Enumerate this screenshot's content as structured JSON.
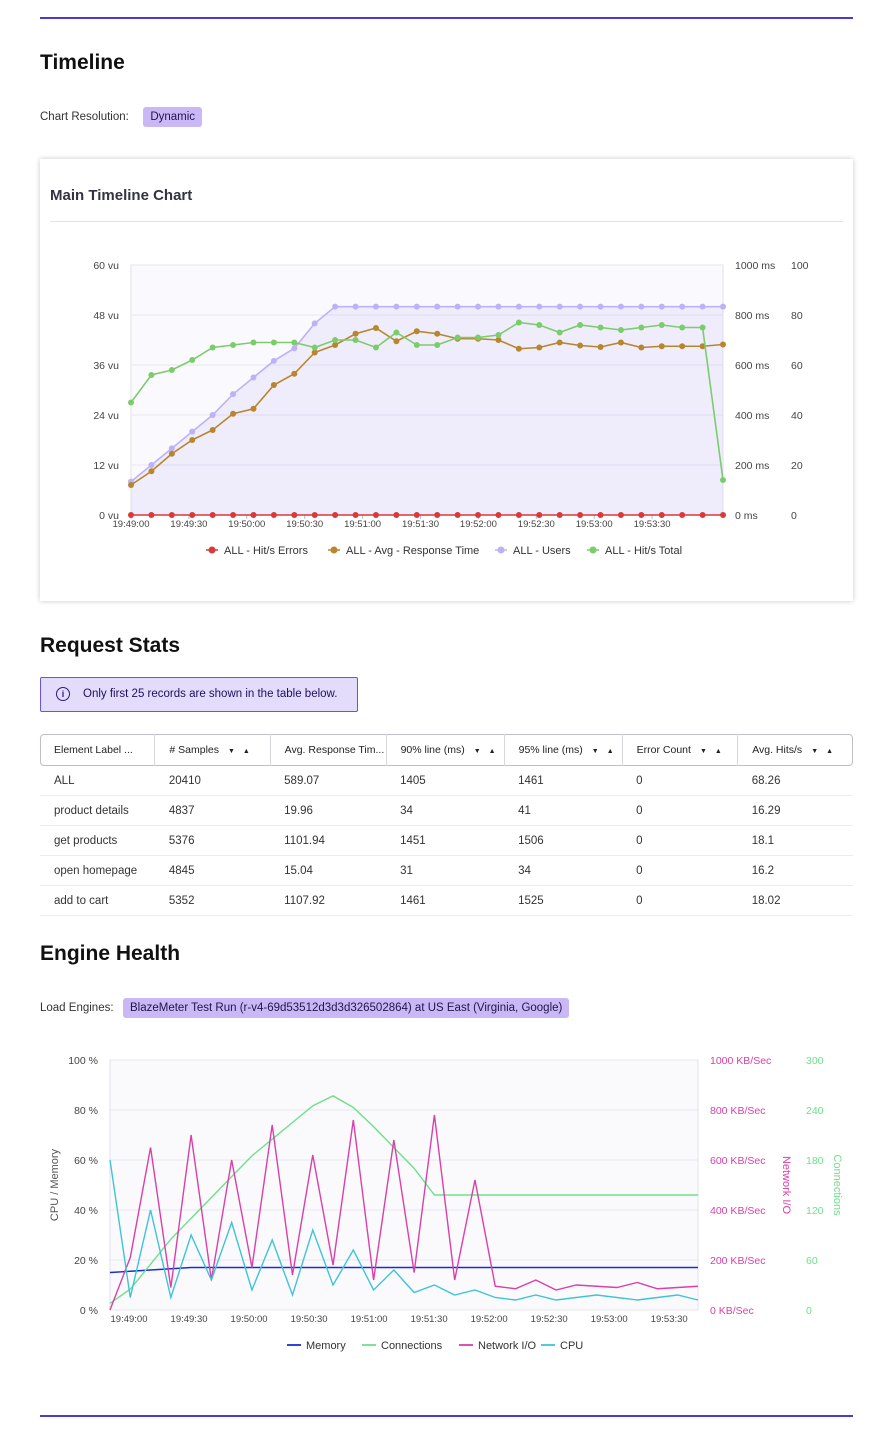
{
  "timeline": {
    "heading": "Timeline",
    "resolution_label": "Chart Resolution:",
    "resolution_value": "Dynamic",
    "card_title": "Main Timeline Chart"
  },
  "request_stats": {
    "heading": "Request Stats",
    "info": "Only first 25 records are shown in the table below.",
    "columns": [
      "Element Label ...",
      "# Samples",
      "Avg. Response Tim...",
      "90% line (ms)",
      "95% line (ms)",
      "Error Count",
      "Avg. Hits/s"
    ],
    "rows": [
      [
        "ALL",
        "20410",
        "589.07",
        "1405",
        "1461",
        "0",
        "68.26"
      ],
      [
        "product details",
        "4837",
        "19.96",
        "34",
        "41",
        "0",
        "16.29"
      ],
      [
        "get products",
        "5376",
        "1101.94",
        "1451",
        "1506",
        "0",
        "18.1"
      ],
      [
        "open homepage",
        "4845",
        "15.04",
        "31",
        "34",
        "0",
        "16.2"
      ],
      [
        "add to cart",
        "5352",
        "1107.92",
        "1461",
        "1525",
        "0",
        "18.02"
      ]
    ]
  },
  "engine_health": {
    "heading": "Engine Health",
    "engines_label": "Load Engines:",
    "engine_value": "BlazeMeter Test Run (r-v4-69d53512d3d3d326502864) at US East (Virginia, Google)"
  },
  "colors": {
    "accent": "#4b3bd6",
    "errors": "#d83a3a",
    "response_time": "#b8862c",
    "users": "#bfb1f5",
    "hits_total": "#7ccc6c",
    "memory": "#1c2ad6",
    "connections": "#6fe08a",
    "network_io": "#d940a8",
    "cpu": "#3fc4d6"
  },
  "chart_data": [
    {
      "type": "line",
      "title": "Main Timeline Chart",
      "x_ticks": [
        "19:49:00",
        "19:49:30",
        "19:50:00",
        "19:50:30",
        "19:51:00",
        "19:51:30",
        "19:52:00",
        "19:52:30",
        "19:53:00",
        "19:53:30"
      ],
      "y_left": {
        "ticks": [
          "0 vu",
          "12 vu",
          "24 vu",
          "36 vu",
          "48 vu",
          "60 vu"
        ],
        "range": [
          0,
          60
        ]
      },
      "y_right_ms": {
        "ticks": [
          "0 ms",
          "200 ms",
          "400 ms",
          "600 ms",
          "800 ms",
          "1000 ms"
        ],
        "range": [
          0,
          1000
        ]
      },
      "y_right_hits": {
        "ticks": [
          "0",
          "20",
          "40",
          "60",
          "80",
          "100"
        ],
        "range": [
          0,
          100
        ]
      },
      "legend": "bottom",
      "grid": true,
      "series": [
        {
          "name": "ALL - Hit/s Errors",
          "axis": "hits",
          "values": [
            0,
            0,
            0,
            0,
            0,
            0,
            0,
            0,
            0,
            0,
            0,
            0,
            0,
            0,
            0,
            0,
            0,
            0,
            0,
            0,
            0,
            0,
            0,
            0,
            0,
            0,
            0,
            0,
            0,
            0
          ]
        },
        {
          "name": "ALL - Avg - Response Time",
          "axis": "ms",
          "values": [
            120,
            175,
            245,
            300,
            340,
            405,
            425,
            520,
            565,
            650,
            680,
            725,
            748,
            695,
            735,
            725,
            705,
            705,
            700,
            665,
            670,
            690,
            678,
            672,
            690,
            670,
            675,
            675,
            675,
            682
          ]
        },
        {
          "name": "ALL - Users",
          "axis": "vu",
          "values": [
            8,
            12,
            16,
            20,
            24,
            29,
            33,
            37,
            40,
            46,
            50,
            50,
            50,
            50,
            50,
            50,
            50,
            50,
            50,
            50,
            50,
            50,
            50,
            50,
            50,
            50,
            50,
            50,
            50,
            50
          ]
        },
        {
          "name": "ALL - Hit/s Total",
          "axis": "hits",
          "values": [
            45,
            56,
            58,
            62,
            67,
            68,
            69,
            69,
            69,
            67,
            70,
            70,
            67,
            73,
            68,
            68,
            71,
            71,
            72,
            77,
            76,
            73,
            76,
            75,
            74,
            75,
            76,
            75,
            75,
            14
          ]
        }
      ]
    },
    {
      "type": "line",
      "title": "",
      "x_ticks": [
        "19:49:00",
        "19:49:30",
        "19:50:00",
        "19:50:30",
        "19:51:00",
        "19:51:30",
        "19:52:00",
        "19:52:30",
        "19:53:00",
        "19:53:30"
      ],
      "y_left": {
        "label": "CPU / Memory",
        "ticks": [
          "0 %",
          "20 %",
          "40 %",
          "60 %",
          "80 %",
          "100 %"
        ],
        "range": [
          0,
          100
        ]
      },
      "y_right_network": {
        "label": "Network I/O",
        "ticks": [
          "0 KB/Sec",
          "200 KB/Sec",
          "400 KB/Sec",
          "600 KB/Sec",
          "800 KB/Sec",
          "1000 KB/Sec"
        ],
        "range": [
          0,
          1000
        ]
      },
      "y_right_connections": {
        "label": "Connections",
        "ticks": [
          "0",
          "60",
          "120",
          "180",
          "240",
          "300"
        ],
        "range": [
          0,
          300
        ]
      },
      "legend": "bottom",
      "grid": true,
      "series": [
        {
          "name": "Memory",
          "axis": "pct",
          "values": [
            15,
            15.5,
            16,
            16.5,
            17,
            17,
            17,
            17,
            17,
            17,
            17,
            17,
            17,
            17,
            17,
            17,
            17,
            17,
            17,
            17,
            17,
            17,
            17,
            17,
            17,
            17,
            17,
            17,
            17,
            17
          ]
        },
        {
          "name": "Connections",
          "axis": "conn",
          "values": [
            8,
            25,
            55,
            85,
            110,
            135,
            160,
            185,
            205,
            225,
            245,
            257,
            243,
            220,
            195,
            170,
            138,
            138,
            138,
            138,
            138,
            138,
            138,
            138,
            138,
            138,
            138,
            138,
            138,
            138
          ]
        },
        {
          "name": "Network I/O",
          "axis": "kb",
          "values": [
            0,
            210,
            650,
            90,
            700,
            120,
            600,
            170,
            740,
            140,
            620,
            180,
            760,
            120,
            680,
            150,
            780,
            120,
            520,
            95,
            85,
            120,
            80,
            100,
            95,
            90,
            110,
            85,
            90,
            95
          ]
        },
        {
          "name": "CPU",
          "axis": "pct",
          "values": [
            60,
            5,
            40,
            5,
            30,
            12,
            35,
            8,
            28,
            6,
            32,
            10,
            24,
            8,
            16,
            7,
            10,
            6,
            8,
            5,
            4,
            6,
            4,
            5,
            6,
            5,
            4,
            5,
            6,
            4
          ]
        }
      ]
    }
  ]
}
